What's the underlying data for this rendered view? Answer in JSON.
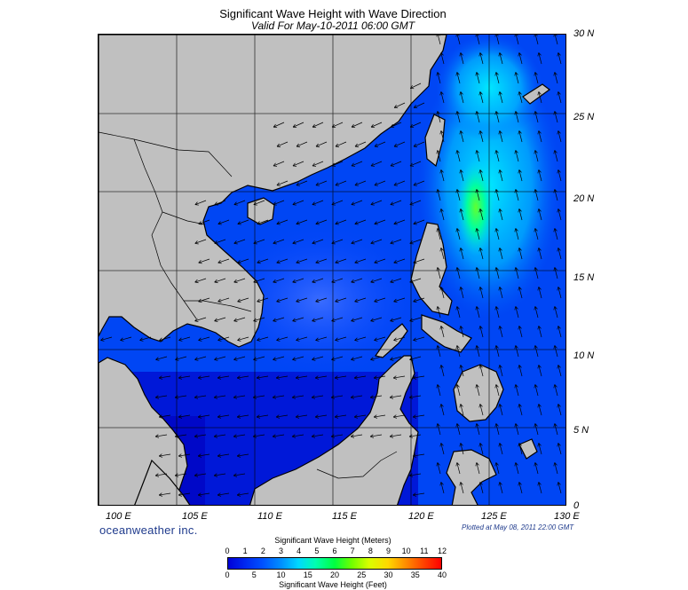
{
  "header": {
    "title": "Significant Wave Height with Wave Direction",
    "subtitle": "Valid For May-10-2011 06:00 GMT"
  },
  "axes": {
    "lat_labels": [
      "30 N",
      "25 N",
      "20 N",
      "15 N",
      "10 N",
      "5 N",
      "0"
    ],
    "lon_labels": [
      "100 E",
      "105 E",
      "110 E",
      "115 E",
      "120 E",
      "125 E",
      "130 E"
    ]
  },
  "footer": {
    "brand": "oceanweather inc.",
    "plotted": "Plotted at May 08, 2011 22:00 GMT"
  },
  "colorbar": {
    "title_meters": "Significant Wave Height (Meters)",
    "title_feet": "Significant Wave Height (Feet)",
    "meters_ticks": [
      "0",
      "1",
      "2",
      "3",
      "4",
      "5",
      "6",
      "7",
      "8",
      "9",
      "10",
      "11",
      "12"
    ],
    "feet_ticks": [
      "0",
      "5",
      "10",
      "15",
      "20",
      "25",
      "30",
      "35",
      "40"
    ]
  },
  "colors": {
    "land": "#c0c0c0",
    "sea_low": "#0000d8",
    "sea_mid": "#0050ff",
    "sea_high": "#00d8ff",
    "peak": "#40ff40"
  }
}
